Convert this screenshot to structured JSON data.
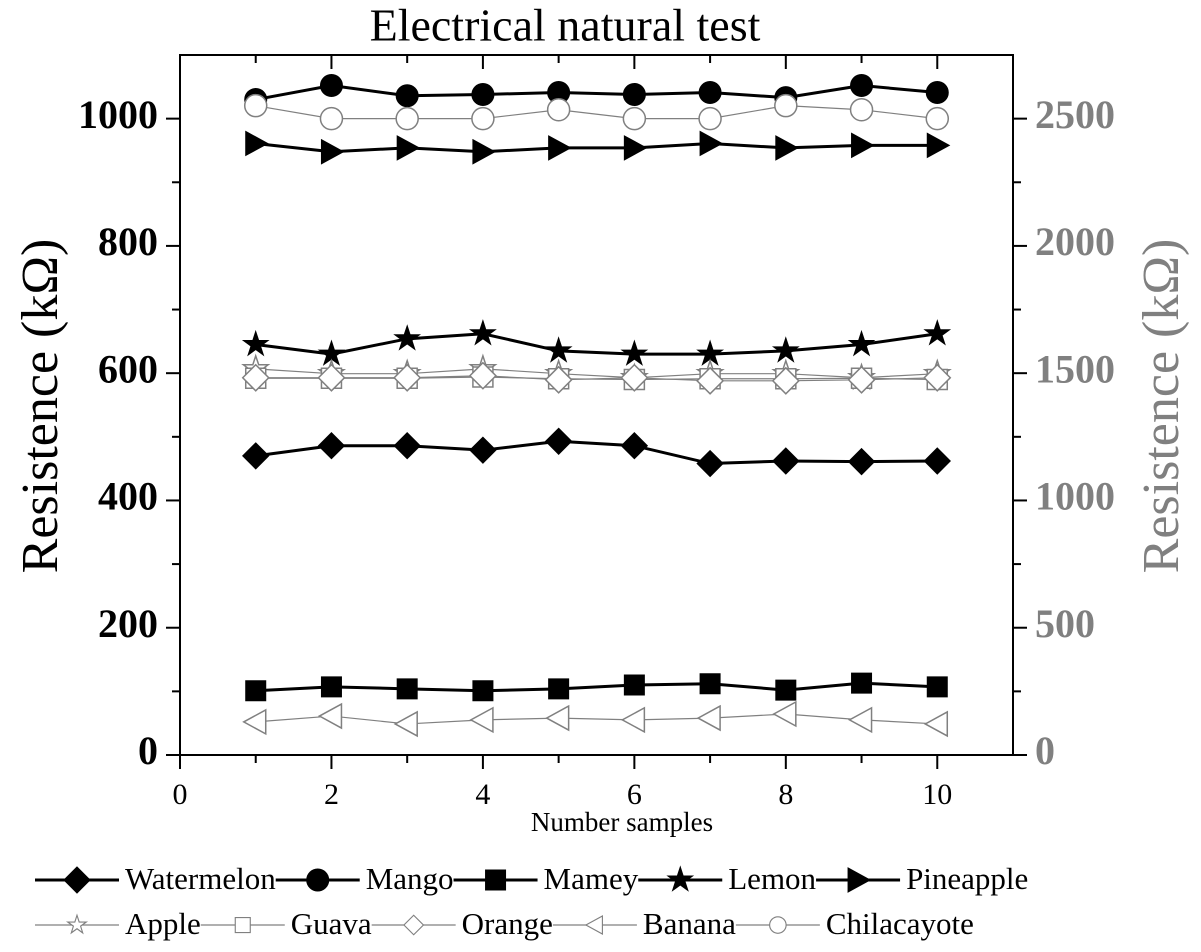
{
  "chart_data": {
    "type": "line",
    "title": "Electrical natural test",
    "x_label": "Number samples",
    "y_label": "Resistence (kΩ)",
    "y2_label": "Resistence (kΩ)",
    "x": [
      1,
      2,
      3,
      4,
      5,
      6,
      7,
      8,
      9,
      10
    ],
    "xlim": [
      0,
      11
    ],
    "xticks": [
      0,
      2,
      4,
      6,
      8,
      10
    ],
    "ylim": [
      0,
      1100
    ],
    "yticks": [
      0,
      200,
      400,
      600,
      800,
      1000
    ],
    "y2lim": [
      0,
      2750
    ],
    "y2ticks": [
      0,
      500,
      1000,
      1500,
      2000,
      2500
    ],
    "y2_color": "#808080",
    "series": [
      {
        "name": "Watermelon",
        "color": "#000000",
        "marker": "diamond",
        "filled": true,
        "values": [
          470,
          486,
          486,
          479,
          493,
          486,
          458,
          462,
          461,
          462
        ]
      },
      {
        "name": "Mango",
        "color": "#000000",
        "marker": "circle",
        "filled": true,
        "values": [
          1030,
          1052,
          1036,
          1038,
          1041,
          1038,
          1041,
          1033,
          1052,
          1041
        ]
      },
      {
        "name": "Mamey",
        "color": "#000000",
        "marker": "square",
        "filled": true,
        "values": [
          101,
          107,
          104,
          101,
          104,
          110,
          112,
          102,
          113,
          107
        ]
      },
      {
        "name": "Lemon",
        "color": "#000000",
        "marker": "star",
        "filled": true,
        "values": [
          645,
          630,
          654,
          662,
          635,
          630,
          630,
          635,
          645,
          662
        ]
      },
      {
        "name": "Pineapple",
        "color": "#000000",
        "marker": "triangle-right",
        "filled": true,
        "values": [
          961,
          948,
          954,
          948,
          954,
          954,
          961,
          954,
          958,
          958
        ]
      },
      {
        "name": "Apple",
        "color": "#808080",
        "marker": "star",
        "filled": false,
        "axis": "y2",
        "values": [
          1517,
          1498,
          1498,
          1517,
          1498,
          1482,
          1498,
          1498,
          1482,
          1498
        ]
      },
      {
        "name": "Guava",
        "color": "#808080",
        "marker": "square",
        "filled": false,
        "axis": "y2",
        "values": [
          1480,
          1480,
          1480,
          1485,
          1478,
          1475,
          1478,
          1478,
          1480,
          1475
        ]
      },
      {
        "name": "Orange",
        "color": "#808080",
        "marker": "diamond",
        "filled": false,
        "axis": "y2",
        "values": [
          1482,
          1482,
          1482,
          1490,
          1474,
          1482,
          1470,
          1470,
          1474,
          1482
        ]
      },
      {
        "name": "Banana",
        "color": "#808080",
        "marker": "triangle-left",
        "filled": false,
        "axis": "y2",
        "values": [
          130,
          153,
          122,
          138,
          145,
          138,
          145,
          161,
          138,
          122
        ]
      },
      {
        "name": "Chilacayote",
        "color": "#808080",
        "marker": "circle",
        "filled": false,
        "axis": "y2",
        "values": [
          2551,
          2500,
          2500,
          2500,
          2535,
          2500,
          2500,
          2551,
          2535,
          2500
        ]
      }
    ]
  }
}
